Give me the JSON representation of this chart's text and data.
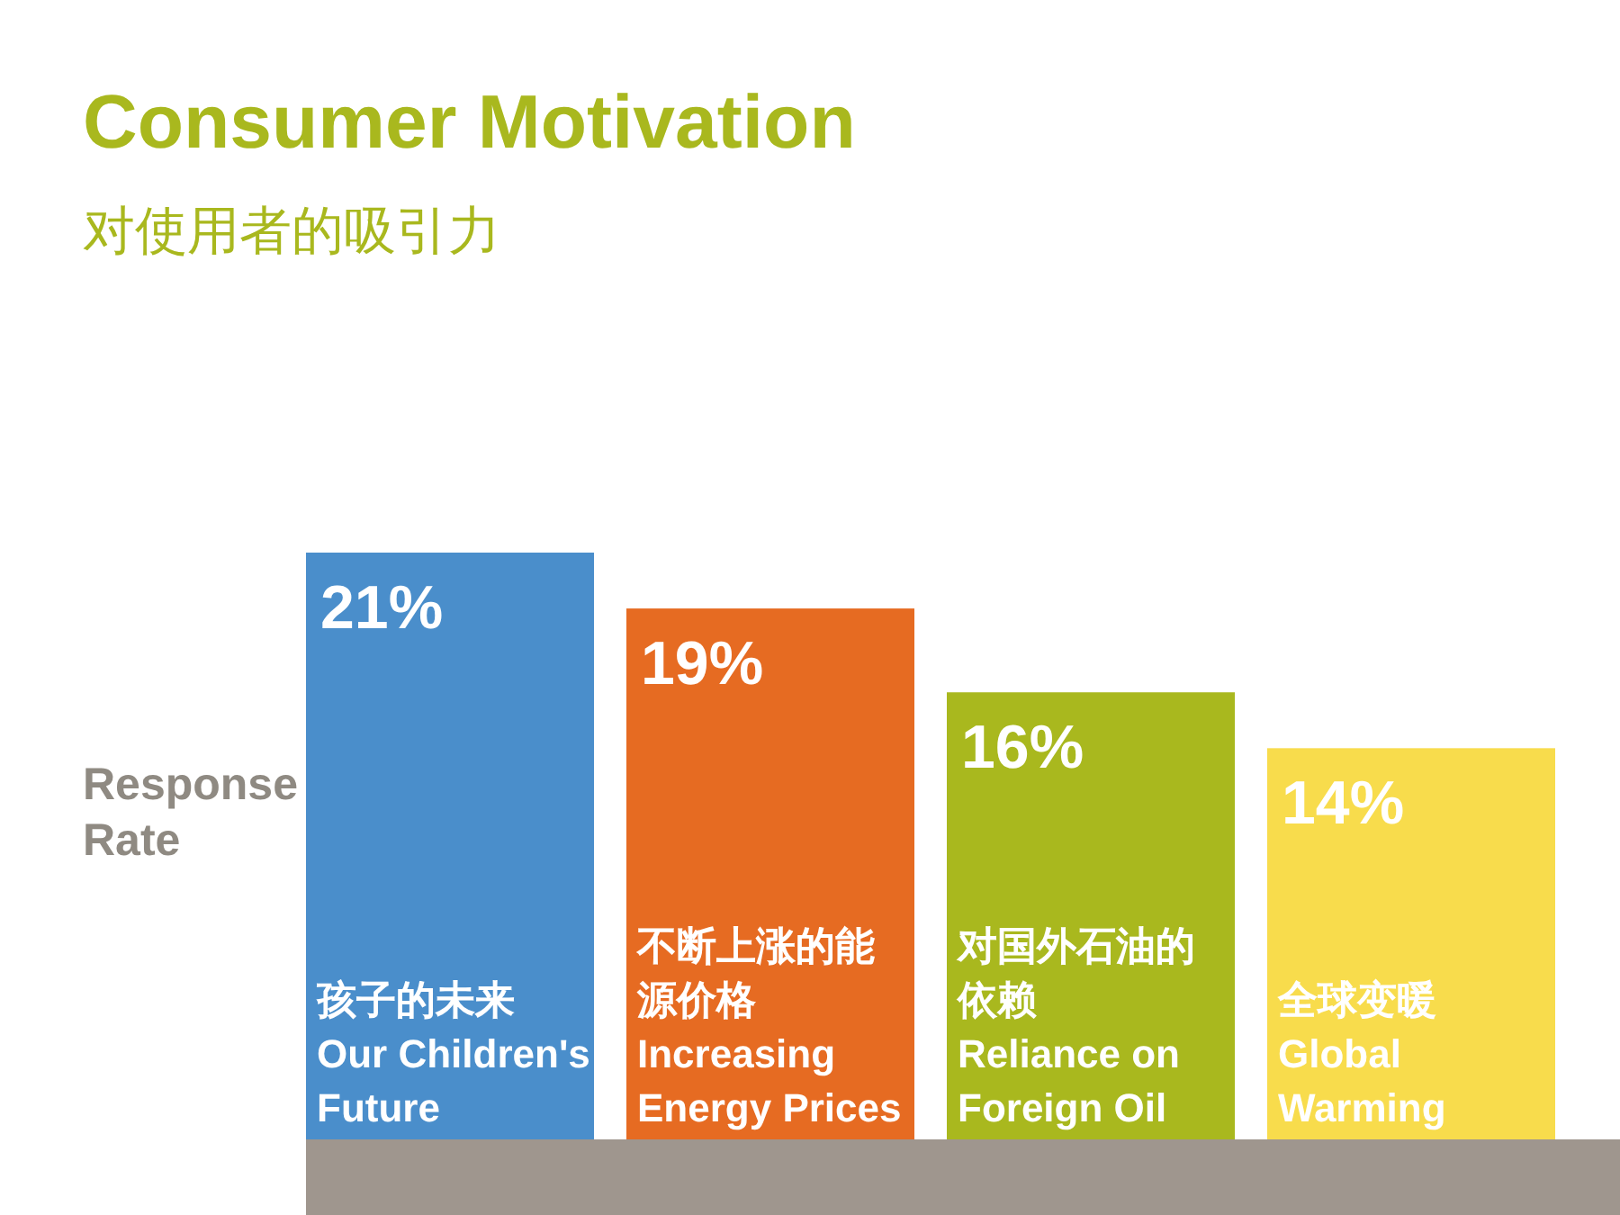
{
  "chart_data": {
    "type": "bar",
    "title": "Consumer Motivation",
    "subtitle": "对使用者的吸引力",
    "ylabel": "Response Rate",
    "categories": [
      "孩子的未来\nOur Children's\nFuture",
      "不断上涨的能源价格\nIncreasing\nEnergy Prices",
      "对国外石油的依赖\nReliance on\nForeign Oil",
      "全球变暖\nGlobal\nWarming"
    ],
    "values": [
      21,
      19,
      16,
      14
    ],
    "value_labels": [
      "21%",
      "19%",
      "16%",
      "14%"
    ],
    "colors": [
      "#4a8ecb",
      "#e66b22",
      "#a9b81e",
      "#f8dc4c"
    ]
  }
}
